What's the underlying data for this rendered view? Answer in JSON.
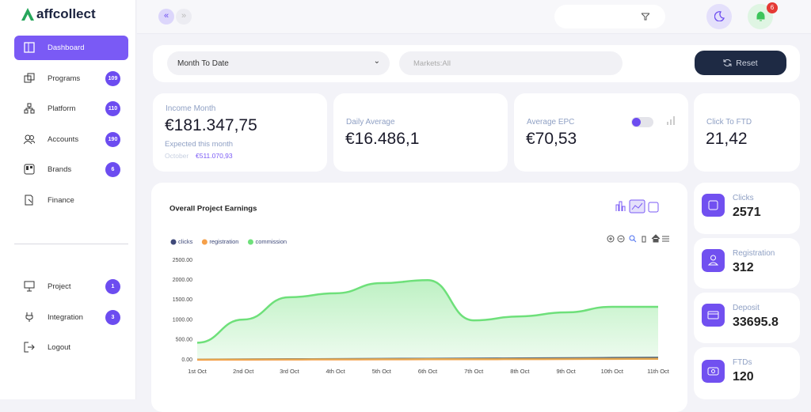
{
  "logo": "affcollect",
  "sidebar": {
    "menu": [
      {
        "label": "Dashboard"
      },
      {
        "label": "Programs",
        "badge": 109
      },
      {
        "label": "Platform",
        "badge": 110
      },
      {
        "label": "Accounts",
        "badge": 190
      },
      {
        "label": "Brands",
        "badge": 6
      },
      {
        "label": "Finance"
      }
    ],
    "bottom": [
      {
        "label": "Project",
        "badge": 1
      },
      {
        "label": "Integration",
        "badge": 3
      },
      {
        "label": "Logout"
      }
    ]
  },
  "notifications": 6,
  "filters": {
    "period": "Month To Date",
    "markets": "Markets:All",
    "reset": "Reset"
  },
  "stats": [
    {
      "label": "Income Month",
      "value": "€181.347,75",
      "note": "Expected this month",
      "month": "October",
      "month_value": "€511.070,93"
    },
    {
      "label": "Daily Average",
      "value": "€16.486,1"
    },
    {
      "label": "Average EPC",
      "value": "€70,53"
    },
    {
      "label": "Click To FTD",
      "value": "21,42"
    }
  ],
  "chart": {
    "type": "line",
    "title": "Overall Project Earnings",
    "categories": [
      "1st Oct",
      "2nd Oct",
      "3rd Oct",
      "4th Oct",
      "5th Oct",
      "6th Oct",
      "7th Oct",
      "8th Oct",
      "9th Oct",
      "10th Oct",
      "11th Oct"
    ],
    "series": [
      {
        "name": "clicks",
        "color": "#3f4a7a",
        "values": [
          5,
          10,
          14,
          18,
          22,
          26,
          30,
          34,
          40,
          46,
          52
        ]
      },
      {
        "name": "registration",
        "color": "#f5a04a",
        "values": [
          3,
          6,
          8,
          10,
          12,
          14,
          15,
          17,
          20,
          23,
          26
        ]
      },
      {
        "name": "commission",
        "color": "#6ee07a",
        "values": [
          430,
          1010,
          1570,
          1670,
          1925,
          2000,
          990,
          1090,
          1190,
          1330,
          1330
        ]
      }
    ],
    "ylim": [
      0,
      2500
    ],
    "yticks": [
      {
        "value": 0,
        "label": "0.00"
      },
      {
        "value": 500,
        "label": "500.00"
      },
      {
        "value": 1000,
        "label": "1000.00"
      },
      {
        "value": 1500,
        "label": "1500.00"
      },
      {
        "value": 2000,
        "label": "2000.00"
      },
      {
        "value": 2500,
        "label": "2500.00"
      }
    ],
    "grid": false
  },
  "kpis": [
    {
      "label": "Clicks",
      "value": 2571
    },
    {
      "label": "Registration",
      "value": 312
    },
    {
      "label": "Deposit",
      "value": 33695.8
    },
    {
      "label": "FTDs",
      "value": 120
    }
  ]
}
